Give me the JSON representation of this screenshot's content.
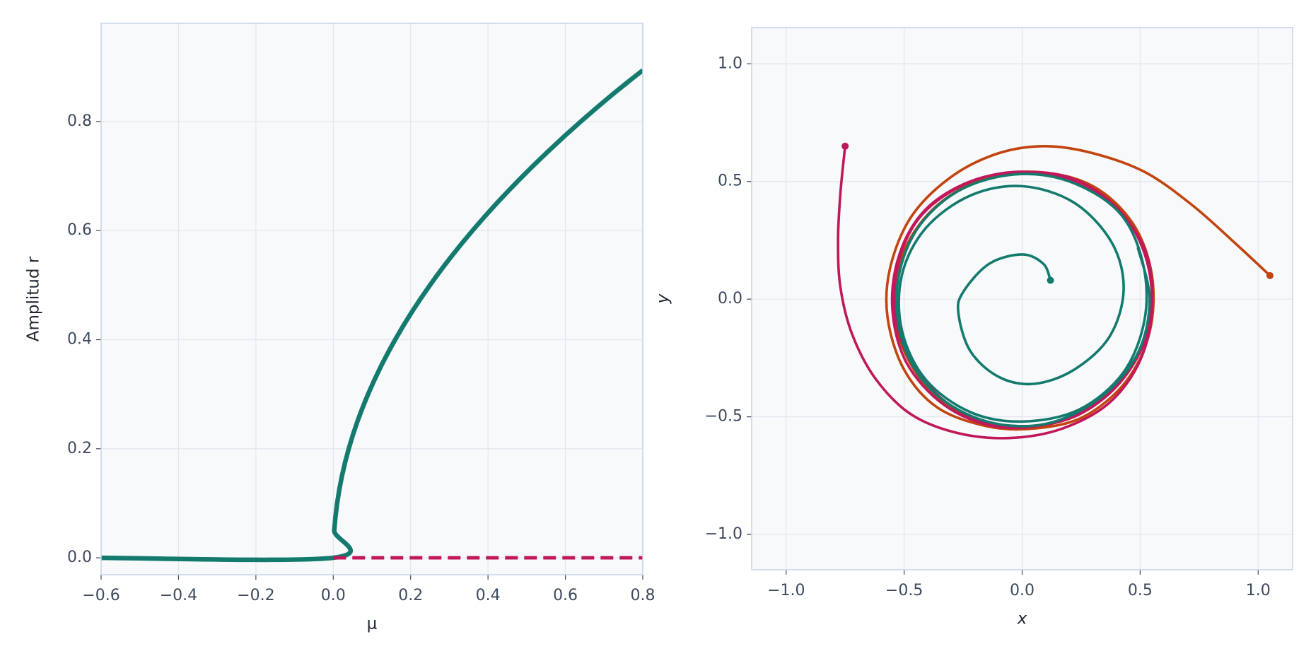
{
  "chart_data": [
    {
      "type": "line",
      "xlabel": "μ",
      "ylabel": "Amplitud r",
      "xlim": [
        -0.6,
        0.8
      ],
      "ylim": [
        -0.031,
        0.98
      ],
      "xticks": [
        {
          "value": -0.6,
          "label": "−0.6"
        },
        {
          "value": -0.4,
          "label": "−0.4"
        },
        {
          "value": -0.2,
          "label": "−0.2"
        },
        {
          "value": 0,
          "label": "0.0"
        },
        0.2,
        0.4,
        0.6,
        0.8
      ],
      "yticks": [
        {
          "value": 0,
          "label": "0.0"
        },
        0.2,
        0.4,
        0.6,
        0.8
      ],
      "grid": true,
      "series": [
        {
          "color": "#147a6e",
          "linestyle": "solid",
          "x": [
            -0.6,
            0,
            0.0025,
            0.01,
            0.0225,
            0.04,
            0.0625,
            0.09,
            0.1225,
            0.16,
            0.2025,
            0.25,
            0.3025,
            0.36,
            0.4225,
            0.49,
            0.5625,
            0.64,
            0.7225,
            0.8
          ],
          "values": [
            0,
            0,
            0.05,
            0.1,
            0.15,
            0.2,
            0.25,
            0.3,
            0.35,
            0.4,
            0.45,
            0.5,
            0.55,
            0.6,
            0.65,
            0.7,
            0.75,
            0.8,
            0.85,
            0.894
          ]
        },
        {
          "color": "#c0185a",
          "linestyle": "dashed",
          "x": [
            0,
            0.8
          ],
          "values": [
            0,
            0
          ]
        }
      ]
    },
    {
      "type": "line",
      "xlabel": "x",
      "ylabel": "y",
      "xlim": [
        -1.146,
        1.146
      ],
      "ylim": [
        -1.15,
        1.154
      ],
      "xticks": [
        {
          "value": -1,
          "label": "−1.0"
        },
        {
          "value": -0.5,
          "label": "−0.5"
        },
        {
          "value": 0,
          "label": "0.0"
        },
        0.5,
        {
          "value": 1,
          "label": "1.0"
        }
      ],
      "yticks": [
        {
          "value": -1,
          "label": "−1.0"
        },
        {
          "value": -0.5,
          "label": "−0.5"
        },
        {
          "value": 0,
          "label": "0.0"
        },
        0.5,
        {
          "value": 1,
          "label": "1.0"
        }
      ],
      "grid": true,
      "start_marker": true,
      "series": [
        {
          "color": "#c2440e",
          "linestyle": "solid",
          "x": [
            1.05,
            0.9,
            0.72,
            0.52,
            0.3,
            0.1,
            -0.1,
            -0.3,
            -0.47,
            -0.56,
            -0.57,
            -0.5,
            -0.36,
            -0.15,
            0.05,
            0.26,
            0.44,
            0.54,
            0.55,
            0.47,
            0.3,
            0.07,
            -0.17,
            -0.38,
            -0.51,
            -0.54,
            -0.47,
            -0.31,
            -0.08,
            0.16,
            0.37,
            0.51,
            0.55
          ],
          "values": [
            0.1,
            0.24,
            0.4,
            0.54,
            0.62,
            0.65,
            0.62,
            0.52,
            0.35,
            0.13,
            -0.08,
            -0.3,
            -0.46,
            -0.54,
            -0.55,
            -0.5,
            -0.35,
            -0.14,
            0.1,
            0.32,
            0.48,
            0.54,
            0.51,
            0.38,
            0.18,
            -0.06,
            -0.28,
            -0.46,
            -0.54,
            -0.52,
            -0.4,
            -0.2,
            0.03
          ]
        },
        {
          "color": "#c0185a",
          "linestyle": "solid",
          "x": [
            -0.75,
            -0.77,
            -0.78,
            -0.77,
            -0.72,
            -0.62,
            -0.47,
            -0.27,
            -0.05,
            0.17,
            0.37,
            0.5,
            0.55,
            0.52,
            0.41,
            0.22,
            0.0,
            -0.22,
            -0.41,
            -0.52,
            -0.55,
            -0.49,
            -0.33,
            -0.12,
            0.11,
            0.32,
            0.48,
            0.55,
            0.52,
            0.39,
            0.19,
            -0.04,
            -0.26,
            -0.44,
            -0.53,
            -0.53,
            -0.43,
            -0.24,
            -0.01,
            0.22,
            0.41,
            0.53,
            0.55
          ],
          "values": [
            0.65,
            0.45,
            0.25,
            0.05,
            -0.15,
            -0.34,
            -0.49,
            -0.57,
            -0.59,
            -0.55,
            -0.44,
            -0.26,
            -0.04,
            0.19,
            0.38,
            0.51,
            0.54,
            0.5,
            0.38,
            0.19,
            -0.04,
            -0.27,
            -0.45,
            -0.54,
            -0.53,
            -0.43,
            -0.25,
            -0.02,
            0.21,
            0.39,
            0.51,
            0.54,
            0.48,
            0.34,
            0.13,
            -0.11,
            -0.33,
            -0.49,
            -0.54,
            -0.5,
            -0.36,
            -0.15,
            0.08
          ]
        },
        {
          "color": "#147a6e",
          "linestyle": "solid",
          "x": [
            0.12,
            0.09,
            0.0,
            -0.14,
            -0.25,
            -0.27,
            -0.22,
            -0.1,
            0.05,
            0.22,
            0.37,
            0.43,
            0.38,
            0.22,
            0.0,
            -0.22,
            -0.41,
            -0.51,
            -0.51,
            -0.41,
            -0.22,
            0.0,
            0.24,
            0.43,
            0.52,
            0.51,
            0.41,
            0.2,
            -0.03,
            -0.27,
            -0.45,
            -0.53,
            -0.5,
            -0.37,
            -0.15,
            0.1,
            0.33,
            0.49,
            0.54,
            0.49
          ],
          "values": [
            0.08,
            0.15,
            0.19,
            0.15,
            0.03,
            -0.06,
            -0.22,
            -0.33,
            -0.36,
            -0.3,
            -0.16,
            0.04,
            0.24,
            0.41,
            0.48,
            0.44,
            0.3,
            0.1,
            -0.13,
            -0.34,
            -0.48,
            -0.52,
            -0.47,
            -0.31,
            -0.08,
            0.16,
            0.37,
            0.5,
            0.53,
            0.46,
            0.29,
            0.05,
            -0.2,
            -0.4,
            -0.52,
            -0.53,
            -0.42,
            -0.23,
            0.0,
            0.22
          ]
        }
      ]
    }
  ]
}
